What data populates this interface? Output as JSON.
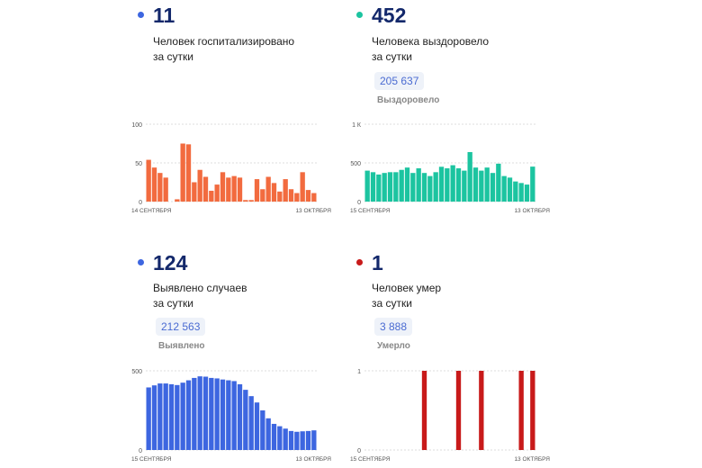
{
  "panels": [
    {
      "id": "hospitalized",
      "value": "11",
      "color": "#3d66e0",
      "bar_color": "#f26b3f",
      "desc": [
        "Человек госпитализировано",
        "за сутки"
      ]
    },
    {
      "id": "recovered",
      "value": "452",
      "color": "#1cc4a0",
      "bar_color": "#1cc4a0",
      "desc": [
        "Человека выздоровело",
        "за сутки"
      ],
      "total": "205 637",
      "total_label": "Выздоровело"
    },
    {
      "id": "cases",
      "value": "124",
      "color": "#3d66e0",
      "bar_color": "#3d66e0",
      "desc": [
        "Выявлено случаев",
        "за сутки"
      ],
      "total": "212 563",
      "total_label": "Выявлено"
    },
    {
      "id": "deaths",
      "value": "1",
      "color": "#c81a1a",
      "bar_color": "#c81a1a",
      "desc": [
        "Человек умер",
        "за сутки"
      ],
      "total": "3 888",
      "total_label": "Умерло"
    }
  ],
  "chart_data": [
    {
      "type": "bar",
      "ylim": [
        0,
        100
      ],
      "y_ticks": [
        "0",
        "50",
        "100"
      ],
      "y_tick_values": [
        0,
        50,
        100
      ],
      "x_start_label": "14 СЕНТЯБРЯ",
      "x_end_label": "13 ОКТЯБРЯ",
      "values": [
        54,
        44,
        37,
        31,
        0,
        3,
        75,
        74,
        25,
        41,
        32,
        14,
        22,
        38,
        31,
        33,
        31,
        2,
        2,
        29,
        16,
        32,
        24,
        13,
        29,
        16,
        11,
        38,
        15,
        11
      ]
    },
    {
      "type": "bar",
      "ylim": [
        0,
        1000
      ],
      "y_ticks": [
        "0",
        "500",
        "1 К"
      ],
      "y_tick_values": [
        0,
        500,
        1000
      ],
      "x_start_label": "15 СЕНТЯБРЯ",
      "x_end_label": "13 ОКТЯБРЯ",
      "values": [
        400,
        380,
        350,
        370,
        380,
        380,
        410,
        440,
        370,
        430,
        370,
        330,
        380,
        450,
        430,
        470,
        430,
        400,
        640,
        440,
        400,
        440,
        370,
        490,
        330,
        310,
        260,
        240,
        220,
        452
      ]
    },
    {
      "type": "bar",
      "ylim": [
        0,
        500
      ],
      "y_ticks": [
        "0",
        "500"
      ],
      "y_tick_values": [
        0,
        500
      ],
      "x_start_label": "15 СЕНТЯБРЯ",
      "x_end_label": "13 ОКТЯБРЯ",
      "values": [
        395,
        408,
        420,
        420,
        415,
        410,
        425,
        440,
        455,
        465,
        463,
        455,
        452,
        445,
        440,
        435,
        415,
        380,
        340,
        300,
        250,
        200,
        165,
        150,
        135,
        120,
        115,
        118,
        120,
        124
      ]
    },
    {
      "type": "bar",
      "ylim": [
        0,
        1
      ],
      "y_ticks": [
        "0",
        "1"
      ],
      "y_tick_values": [
        0,
        1
      ],
      "x_start_label": "15 СЕНТЯБРЯ",
      "x_end_label": "13 ОКТЯБРЯ",
      "values": [
        0,
        0,
        0,
        0,
        0,
        0,
        0,
        0,
        0,
        0,
        1,
        0,
        0,
        0,
        0,
        0,
        1,
        0,
        0,
        0,
        1,
        0,
        0,
        0,
        0,
        0,
        0,
        1,
        0,
        1
      ]
    }
  ]
}
